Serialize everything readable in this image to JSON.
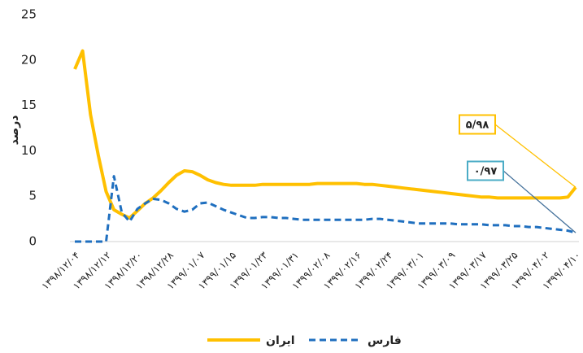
{
  "chart_data": {
    "type": "line",
    "ylabel": "درصد",
    "categories": [
      "۱۳۹۸/۱۲/۰۴",
      null,
      null,
      null,
      "۱۳۹۸/۱۲/۱۲",
      null,
      null,
      null,
      "۱۳۹۸/۱۲/۲۰",
      null,
      null,
      null,
      "۱۳۹۸/۱۲/۲۸",
      null,
      null,
      null,
      "۱۳۹۹/۰۱/۰۷",
      null,
      null,
      null,
      "۱۳۹۹/۰۱/۱۵",
      null,
      null,
      null,
      "۱۳۹۹/۰۱/۲۳",
      null,
      null,
      null,
      "۱۳۹۹/۰۱/۳۱",
      null,
      null,
      null,
      "۱۳۹۹/۰۲/۰۸",
      null,
      null,
      null,
      "۱۳۹۹/۰۲/۱۶",
      null,
      null,
      null,
      "۱۳۹۹/۰۲/۲۴",
      null,
      null,
      null,
      "۱۳۹۹/۰۳/۰۱",
      null,
      null,
      null,
      "۱۳۹۹/۰۳/۰۹",
      null,
      null,
      null,
      "۱۳۹۹/۰۳/۱۷",
      null,
      null,
      null,
      "۱۳۹۹/۰۳/۲۵",
      null,
      null,
      null,
      "۱۳۹۹/۰۴/۰۲",
      null,
      null,
      null,
      "۱۳۹۹/۰۴/۱۰"
    ],
    "series": [
      {
        "name": "ایران",
        "color": "#FFC000",
        "dash": false,
        "values": [
          19,
          21,
          14,
          9.5,
          5.5,
          3.5,
          3,
          2.6,
          3.4,
          4.2,
          4.8,
          5.6,
          6.5,
          7.3,
          7.8,
          7.7,
          7.3,
          6.8,
          6.5,
          6.3,
          6.2,
          6.2,
          6.2,
          6.2,
          6.3,
          6.3,
          6.3,
          6.3,
          6.3,
          6.3,
          6.3,
          6.4,
          6.4,
          6.4,
          6.4,
          6.4,
          6.4,
          6.3,
          6.3,
          6.2,
          6.1,
          6.0,
          5.9,
          5.8,
          5.7,
          5.6,
          5.5,
          5.4,
          5.3,
          5.2,
          5.1,
          5.0,
          4.9,
          4.9,
          4.8,
          4.8,
          4.8,
          4.8,
          4.8,
          4.8,
          4.8,
          4.8,
          4.8,
          4.9,
          5.98
        ],
        "value_labels": [
          null,
          null,
          null,
          null,
          null,
          null,
          null,
          null,
          null,
          null,
          null,
          null,
          null,
          null,
          null,
          null,
          null,
          null,
          null,
          null,
          null,
          null,
          null,
          null,
          null,
          null,
          null,
          null,
          null,
          null,
          null,
          null,
          null,
          null,
          null,
          null,
          null,
          null,
          null,
          null,
          null,
          null,
          null,
          null,
          null,
          null,
          null,
          null,
          null,
          null,
          null,
          null,
          null,
          null,
          null,
          null,
          null,
          null,
          null,
          null,
          null,
          null,
          null,
          null,
          "۵/۹۸"
        ]
      },
      {
        "name": "فارس",
        "color": "#1F6FBF",
        "dash": true,
        "values": [
          0,
          0,
          0,
          0,
          0,
          7.2,
          3.2,
          2.2,
          3.6,
          4.2,
          4.7,
          4.6,
          4.2,
          3.6,
          3.3,
          3.5,
          4.2,
          4.3,
          3.9,
          3.5,
          3.2,
          2.9,
          2.6,
          2.6,
          2.7,
          2.7,
          2.6,
          2.6,
          2.5,
          2.4,
          2.4,
          2.4,
          2.4,
          2.4,
          2.4,
          2.4,
          2.4,
          2.4,
          2.5,
          2.5,
          2.4,
          2.3,
          2.2,
          2.1,
          2.0,
          2.0,
          2.0,
          2.0,
          2.0,
          1.9,
          1.9,
          1.9,
          1.9,
          1.8,
          1.8,
          1.8,
          1.7,
          1.7,
          1.6,
          1.6,
          1.5,
          1.4,
          1.3,
          1.2,
          0.97
        ],
        "value_labels": [
          null,
          null,
          null,
          null,
          null,
          null,
          null,
          null,
          null,
          null,
          null,
          null,
          null,
          null,
          null,
          null,
          null,
          null,
          null,
          null,
          null,
          null,
          null,
          null,
          null,
          null,
          null,
          null,
          null,
          null,
          null,
          null,
          null,
          null,
          null,
          null,
          null,
          null,
          null,
          null,
          null,
          null,
          null,
          null,
          null,
          null,
          null,
          null,
          null,
          null,
          null,
          null,
          null,
          null,
          null,
          null,
          null,
          null,
          null,
          null,
          null,
          null,
          null,
          null,
          "۰/۹۷"
        ]
      }
    ],
    "ylim": [
      0,
      25
    ],
    "yticks": [
      0,
      5,
      10,
      15,
      20,
      25
    ],
    "grid": false,
    "legend": "bottom"
  }
}
